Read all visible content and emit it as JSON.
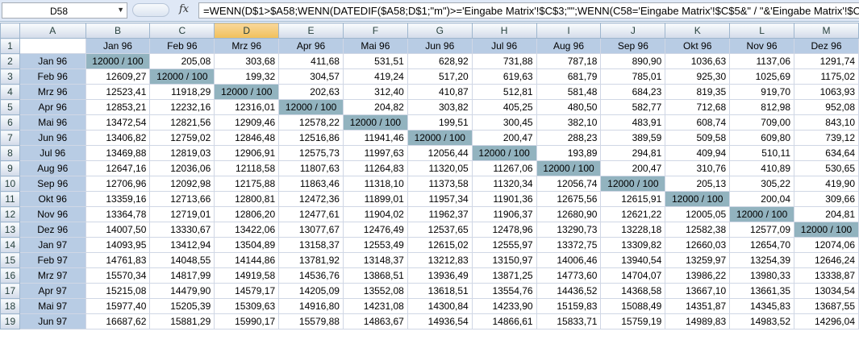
{
  "name_box": "D58",
  "formula": "=WENN(D$1>$A58;WENN(DATEDIF($A58;D$1;\"m\")>='Eingabe Matrix'!$C$3;\"\";WENN(C58='Eingabe Matrix'!$C$5&\" / \"&'Eingabe Matrix'!$C$4;\"\";",
  "fx_label": "fx",
  "column_headers": [
    "A",
    "B",
    "C",
    "D",
    "E",
    "F",
    "G",
    "H",
    "I",
    "J",
    "K",
    "L",
    "M"
  ],
  "selected_column": "D",
  "row_numbers": [
    "1",
    "2",
    "3",
    "4",
    "5",
    "6",
    "7",
    "8",
    "9",
    "10",
    "11",
    "12",
    "13",
    "14",
    "15",
    "16",
    "17",
    "18",
    "19"
  ],
  "header_row": [
    "",
    "Jan 96",
    "Feb 96",
    "Mrz 96",
    "Apr 96",
    "Mai 96",
    "Jun 96",
    "Jul 96",
    "Aug 96",
    "Sep 96",
    "Okt 96",
    "Nov 96",
    "Dez 96"
  ],
  "rows": [
    [
      "Jan 96",
      "12000 / 100",
      "205,08",
      "303,68",
      "411,68",
      "531,51",
      "628,92",
      "731,88",
      "787,18",
      "890,90",
      "1036,63",
      "1137,06",
      "1291,74"
    ],
    [
      "Feb 96",
      "12609,27",
      "12000 / 100",
      "199,32",
      "304,57",
      "419,24",
      "517,20",
      "619,63",
      "681,79",
      "785,01",
      "925,30",
      "1025,69",
      "1175,02"
    ],
    [
      "Mrz 96",
      "12523,41",
      "11918,29",
      "12000 / 100",
      "202,63",
      "312,40",
      "410,87",
      "512,81",
      "581,48",
      "684,23",
      "819,35",
      "919,70",
      "1063,93"
    ],
    [
      "Apr 96",
      "12853,21",
      "12232,16",
      "12316,01",
      "12000 / 100",
      "204,82",
      "303,82",
      "405,25",
      "480,50",
      "582,77",
      "712,68",
      "812,98",
      "952,08"
    ],
    [
      "Mai 96",
      "13472,54",
      "12821,56",
      "12909,46",
      "12578,22",
      "12000 / 100",
      "199,51",
      "300,45",
      "382,10",
      "483,91",
      "608,74",
      "709,00",
      "843,10"
    ],
    [
      "Jun 96",
      "13406,82",
      "12759,02",
      "12846,48",
      "12516,86",
      "11941,46",
      "12000 / 100",
      "200,47",
      "288,23",
      "389,59",
      "509,58",
      "609,80",
      "739,12"
    ],
    [
      "Jul 96",
      "13469,88",
      "12819,03",
      "12906,91",
      "12575,73",
      "11997,63",
      "12056,44",
      "12000 / 100",
      "193,89",
      "294,81",
      "409,94",
      "510,11",
      "634,64"
    ],
    [
      "Aug 96",
      "12647,16",
      "12036,06",
      "12118,58",
      "11807,63",
      "11264,83",
      "11320,05",
      "11267,06",
      "12000 / 100",
      "200,47",
      "310,76",
      "410,89",
      "530,65"
    ],
    [
      "Sep 96",
      "12706,96",
      "12092,98",
      "12175,88",
      "11863,46",
      "11318,10",
      "11373,58",
      "11320,34",
      "12056,74",
      "12000 / 100",
      "205,13",
      "305,22",
      "419,90"
    ],
    [
      "Okt 96",
      "13359,16",
      "12713,66",
      "12800,81",
      "12472,36",
      "11899,01",
      "11957,34",
      "11901,36",
      "12675,56",
      "12615,91",
      "12000 / 100",
      "200,04",
      "309,66"
    ],
    [
      "Nov 96",
      "13364,78",
      "12719,01",
      "12806,20",
      "12477,61",
      "11904,02",
      "11962,37",
      "11906,37",
      "12680,90",
      "12621,22",
      "12005,05",
      "12000 / 100",
      "204,81"
    ],
    [
      "Dez 96",
      "14007,50",
      "13330,67",
      "13422,06",
      "13077,67",
      "12476,49",
      "12537,65",
      "12478,96",
      "13290,73",
      "13228,18",
      "12582,38",
      "12577,09",
      "12000 / 100"
    ],
    [
      "Jan 97",
      "14093,95",
      "13412,94",
      "13504,89",
      "13158,37",
      "12553,49",
      "12615,02",
      "12555,97",
      "13372,75",
      "13309,82",
      "12660,03",
      "12654,70",
      "12074,06"
    ],
    [
      "Feb 97",
      "14761,83",
      "14048,55",
      "14144,86",
      "13781,92",
      "13148,37",
      "13212,83",
      "13150,97",
      "14006,46",
      "13940,54",
      "13259,97",
      "13254,39",
      "12646,24"
    ],
    [
      "Mrz 97",
      "15570,34",
      "14817,99",
      "14919,58",
      "14536,76",
      "13868,51",
      "13936,49",
      "13871,25",
      "14773,60",
      "14704,07",
      "13986,22",
      "13980,33",
      "13338,87"
    ],
    [
      "Apr 97",
      "15215,08",
      "14479,90",
      "14579,17",
      "14205,09",
      "13552,08",
      "13618,51",
      "13554,76",
      "14436,52",
      "14368,58",
      "13667,10",
      "13661,35",
      "13034,54"
    ],
    [
      "Mai 97",
      "15977,40",
      "15205,39",
      "15309,63",
      "14916,80",
      "14231,08",
      "14300,84",
      "14233,90",
      "15159,83",
      "15088,49",
      "14351,87",
      "14345,83",
      "13687,55"
    ],
    [
      "Jun 97",
      "16687,62",
      "15881,29",
      "15990,17",
      "15579,88",
      "14863,67",
      "14936,54",
      "14866,61",
      "15833,71",
      "15759,19",
      "14989,83",
      "14983,52",
      "14296,04"
    ]
  ]
}
